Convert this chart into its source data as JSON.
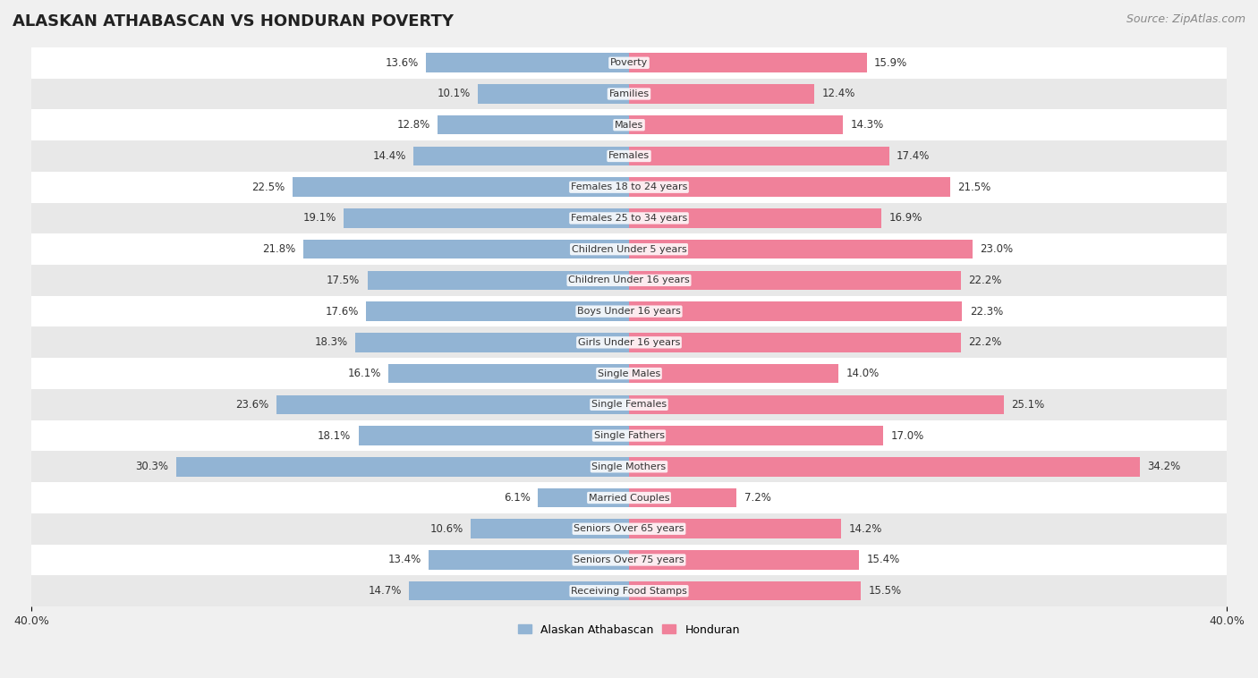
{
  "title": "ALASKAN ATHABASCAN VS HONDURAN POVERTY",
  "source": "Source: ZipAtlas.com",
  "categories": [
    "Poverty",
    "Families",
    "Males",
    "Females",
    "Females 18 to 24 years",
    "Females 25 to 34 years",
    "Children Under 5 years",
    "Children Under 16 years",
    "Boys Under 16 years",
    "Girls Under 16 years",
    "Single Males",
    "Single Females",
    "Single Fathers",
    "Single Mothers",
    "Married Couples",
    "Seniors Over 65 years",
    "Seniors Over 75 years",
    "Receiving Food Stamps"
  ],
  "left_values": [
    13.6,
    10.1,
    12.8,
    14.4,
    22.5,
    19.1,
    21.8,
    17.5,
    17.6,
    18.3,
    16.1,
    23.6,
    18.1,
    30.3,
    6.1,
    10.6,
    13.4,
    14.7
  ],
  "right_values": [
    15.9,
    12.4,
    14.3,
    17.4,
    21.5,
    16.9,
    23.0,
    22.2,
    22.3,
    22.2,
    14.0,
    25.1,
    17.0,
    34.2,
    7.2,
    14.2,
    15.4,
    15.5
  ],
  "left_color": "#92b4d4",
  "right_color": "#f0819a",
  "bar_height": 0.62,
  "xlim": 40.0,
  "background_color": "#f0f0f0",
  "row_light_color": "#ffffff",
  "row_dark_color": "#e8e8e8",
  "title_fontsize": 13,
  "source_fontsize": 9,
  "tick_fontsize": 9,
  "bar_label_fontsize": 8.5,
  "category_fontsize": 8,
  "legend_fontsize": 9,
  "label_inside_threshold": 25.0
}
